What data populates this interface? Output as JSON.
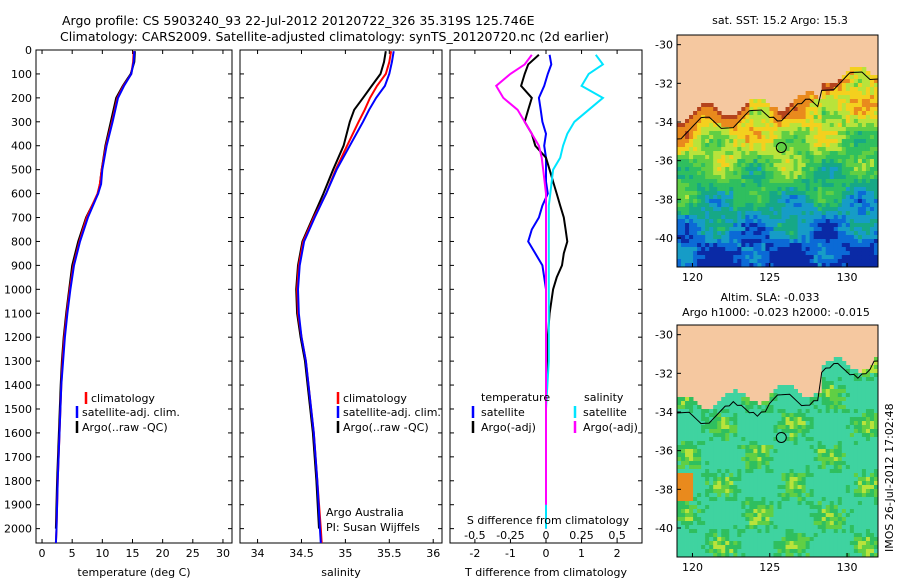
{
  "title_line1": "Argo profile: CS 5903240_93 22-Jul-2012 20120722_326 35.319S 125.746E",
  "title_line2": "Climatology: CARS2009. Satellite-adjusted climatology: synTS_20120720.nc (2d earlier)",
  "colors": {
    "climatology": "#ff0000",
    "satellite": "#0000ff",
    "argo": "#000000",
    "sat_salinity": "#00e5ff",
    "argo_salinity": "#ff00ff",
    "land": "#f5c8a0"
  },
  "chart_data": [
    {
      "type": "line",
      "id": "temperature",
      "xlabel": "temperature (deg C)",
      "xlim": [
        -1,
        31.5
      ],
      "ylim": [
        2060,
        0
      ],
      "xticks": [
        0,
        5,
        10,
        15,
        20,
        25,
        30
      ],
      "yticks": [
        0,
        100,
        200,
        300,
        400,
        500,
        600,
        700,
        800,
        900,
        1000,
        1100,
        1200,
        1300,
        1400,
        1500,
        1600,
        1700,
        1800,
        1900,
        2000
      ],
      "y": [
        5,
        50,
        100,
        150,
        200,
        300,
        400,
        500,
        560,
        600,
        700,
        800,
        900,
        1000,
        1100,
        1200,
        1300,
        1400,
        1600,
        1800,
        2000,
        2060
      ],
      "legend": [
        "climatology",
        "satellite-adj. clim.",
        "Argo(..raw -QC)"
      ],
      "series": [
        {
          "name": "climatology",
          "values": [
            15.2,
            15.1,
            14.8,
            13.5,
            12.5,
            11.6,
            10.6,
            9.9,
            9.6,
            9.2,
            7.4,
            6.2,
            5.2,
            4.6,
            4.1,
            3.7,
            3.4,
            3.2,
            2.9,
            2.6,
            2.4,
            2.3
          ]
        },
        {
          "name": "satellite-adj. clim.",
          "values": [
            15.3,
            15.2,
            14.8,
            13.6,
            12.6,
            11.7,
            10.7,
            10.0,
            9.8,
            9.3,
            7.6,
            6.3,
            5.3,
            4.7,
            4.2,
            3.8,
            3.5,
            3.2,
            2.9,
            2.6,
            2.4,
            2.3
          ]
        },
        {
          "name": "Argo(..raw -QC)",
          "values": [
            15.4,
            15.3,
            14.7,
            13.4,
            12.3,
            11.4,
            10.5,
            9.9,
            9.6,
            9.3,
            7.3,
            6.0,
            5.0,
            4.5,
            4.0,
            3.6,
            3.3,
            3.1,
            2.8,
            2.5,
            2.3,
            null
          ]
        }
      ]
    },
    {
      "type": "line",
      "id": "salinity",
      "xlabel": "salinity",
      "xlim": [
        33.8,
        36.1
      ],
      "ylim": [
        2060,
        0
      ],
      "xticks": [
        34,
        34.5,
        35,
        35.5,
        36
      ],
      "y": [
        5,
        50,
        100,
        150,
        200,
        250,
        300,
        400,
        500,
        600,
        700,
        800,
        900,
        1000,
        1100,
        1200,
        1300,
        1400,
        1600,
        1800,
        2000,
        2060
      ],
      "legend": [
        "climatology",
        "satellite-adj. clim.",
        "Argo(..raw -QC)"
      ],
      "credit": [
        "Argo Australia",
        "PI: Susan Wijffels"
      ],
      "series": [
        {
          "name": "climatology",
          "values": [
            35.52,
            35.5,
            35.46,
            35.36,
            35.28,
            35.22,
            35.15,
            35.02,
            34.89,
            34.78,
            34.64,
            34.52,
            34.47,
            34.45,
            34.46,
            34.5,
            34.55,
            34.58,
            34.64,
            34.68,
            34.72,
            34.73
          ]
        },
        {
          "name": "satellite-adj. clim.",
          "values": [
            35.55,
            35.53,
            35.5,
            35.45,
            35.35,
            35.27,
            35.2,
            35.05,
            34.9,
            34.78,
            34.65,
            34.53,
            34.48,
            34.46,
            34.47,
            34.5,
            34.55,
            34.58,
            34.64,
            34.68,
            34.71,
            34.72
          ]
        },
        {
          "name": "Argo(..raw -QC)",
          "values": [
            35.46,
            35.44,
            35.4,
            35.3,
            35.2,
            35.1,
            35.05,
            34.98,
            34.86,
            34.75,
            34.63,
            34.51,
            34.46,
            34.44,
            34.45,
            34.49,
            34.54,
            34.57,
            34.63,
            34.67,
            34.7,
            null
          ]
        }
      ]
    },
    {
      "type": "line",
      "id": "difference",
      "xlabel": "T difference from climatology",
      "xlabel_top": "S difference from climatology",
      "xlim": [
        -2.7,
        2.7
      ],
      "ylim": [
        2060,
        0
      ],
      "xticks": [
        -2,
        -1,
        0,
        1,
        2
      ],
      "xticks_top": [
        -0.5,
        -0.25,
        0,
        0.25,
        0.5
      ],
      "y": [
        20,
        60,
        100,
        150,
        200,
        250,
        300,
        350,
        400,
        450,
        500,
        550,
        600,
        650,
        700,
        750,
        800,
        850,
        900,
        950,
        1000,
        1100,
        1200,
        1300,
        1400,
        1500,
        1600,
        1700,
        1800,
        1900,
        2000
      ],
      "legend_left": {
        "heading": "temperature",
        "items": [
          "satellite",
          "Argo(-adj)"
        ]
      },
      "legend_right": {
        "heading": "salinity",
        "items": [
          "satellite",
          "Argo(-adj)"
        ]
      },
      "series": [
        {
          "name": "temperature satellite",
          "values": [
            0.1,
            0.15,
            0.05,
            -0.05,
            -0.2,
            -0.15,
            -0.1,
            0.0,
            -0.05,
            0.0,
            0.0,
            0.0,
            0.05,
            -0.1,
            -0.2,
            -0.4,
            -0.5,
            -0.3,
            -0.1,
            -0.05,
            0.0,
            0.0,
            0.0,
            0.0,
            0.0,
            0.0,
            0.0,
            0.0,
            0.0,
            0.0,
            0.0
          ]
        },
        {
          "name": "temperature Argo(-adj)",
          "values": [
            -0.2,
            -0.5,
            -0.6,
            -0.7,
            -0.4,
            -0.5,
            -0.6,
            -0.4,
            -0.3,
            0.0,
            0.1,
            0.2,
            0.3,
            0.4,
            0.5,
            0.55,
            0.6,
            0.5,
            0.45,
            0.3,
            0.2,
            0.1,
            0.05,
            0.05,
            0.0,
            0.0,
            0.0,
            0.0,
            0.0,
            0.0,
            null
          ]
        },
        {
          "name": "salinity satellite",
          "values": [
            0.35,
            0.4,
            0.3,
            0.25,
            0.4,
            0.3,
            0.2,
            0.15,
            0.12,
            0.1,
            0.05,
            0.04,
            0.03,
            0.02,
            0.02,
            0.02,
            0.02,
            0.02,
            0.02,
            0.02,
            0.02,
            0.02,
            0.02,
            0.02,
            0.01,
            0.0,
            0.0,
            0.0,
            0.0,
            0.0,
            0.0
          ]
        },
        {
          "name": "salinity Argo(-adj)",
          "values": [
            -0.1,
            -0.15,
            -0.25,
            -0.35,
            -0.3,
            -0.2,
            -0.15,
            -0.1,
            -0.05,
            -0.03,
            -0.02,
            -0.01,
            0.0,
            0.0,
            0.0,
            0.0,
            0.0,
            0.0,
            0.0,
            0.0,
            0.0,
            0.0,
            0.0,
            0.0,
            0.0,
            0.0,
            0.0,
            0.0,
            0.0,
            0.0,
            null
          ]
        }
      ]
    },
    {
      "type": "heatmap",
      "id": "sst-map",
      "title": "sat. SST: 15.2  Argo: 15.3",
      "xlim": [
        119,
        132
      ],
      "ylim": [
        -41.5,
        -29.5
      ],
      "xticks": [
        120,
        125,
        130
      ],
      "yticks": [
        -30,
        -32,
        -34,
        -36,
        -38,
        -40
      ],
      "marker": {
        "lon": 125.746,
        "lat": -35.319
      }
    },
    {
      "type": "heatmap",
      "id": "sla-map",
      "title_line1": "Altim. SLA: -0.033",
      "title_line2": "Argo h1000: -0.023  h2000: -0.015",
      "xlim": [
        119,
        132
      ],
      "ylim": [
        -41.5,
        -29.5
      ],
      "xticks": [
        120,
        125,
        130
      ],
      "yticks": [
        -30,
        -32,
        -34,
        -36,
        -38,
        -40
      ],
      "marker": {
        "lon": 125.746,
        "lat": -35.319
      }
    }
  ],
  "stamp": "IMOS 26-Jul-2012 17:02:48"
}
